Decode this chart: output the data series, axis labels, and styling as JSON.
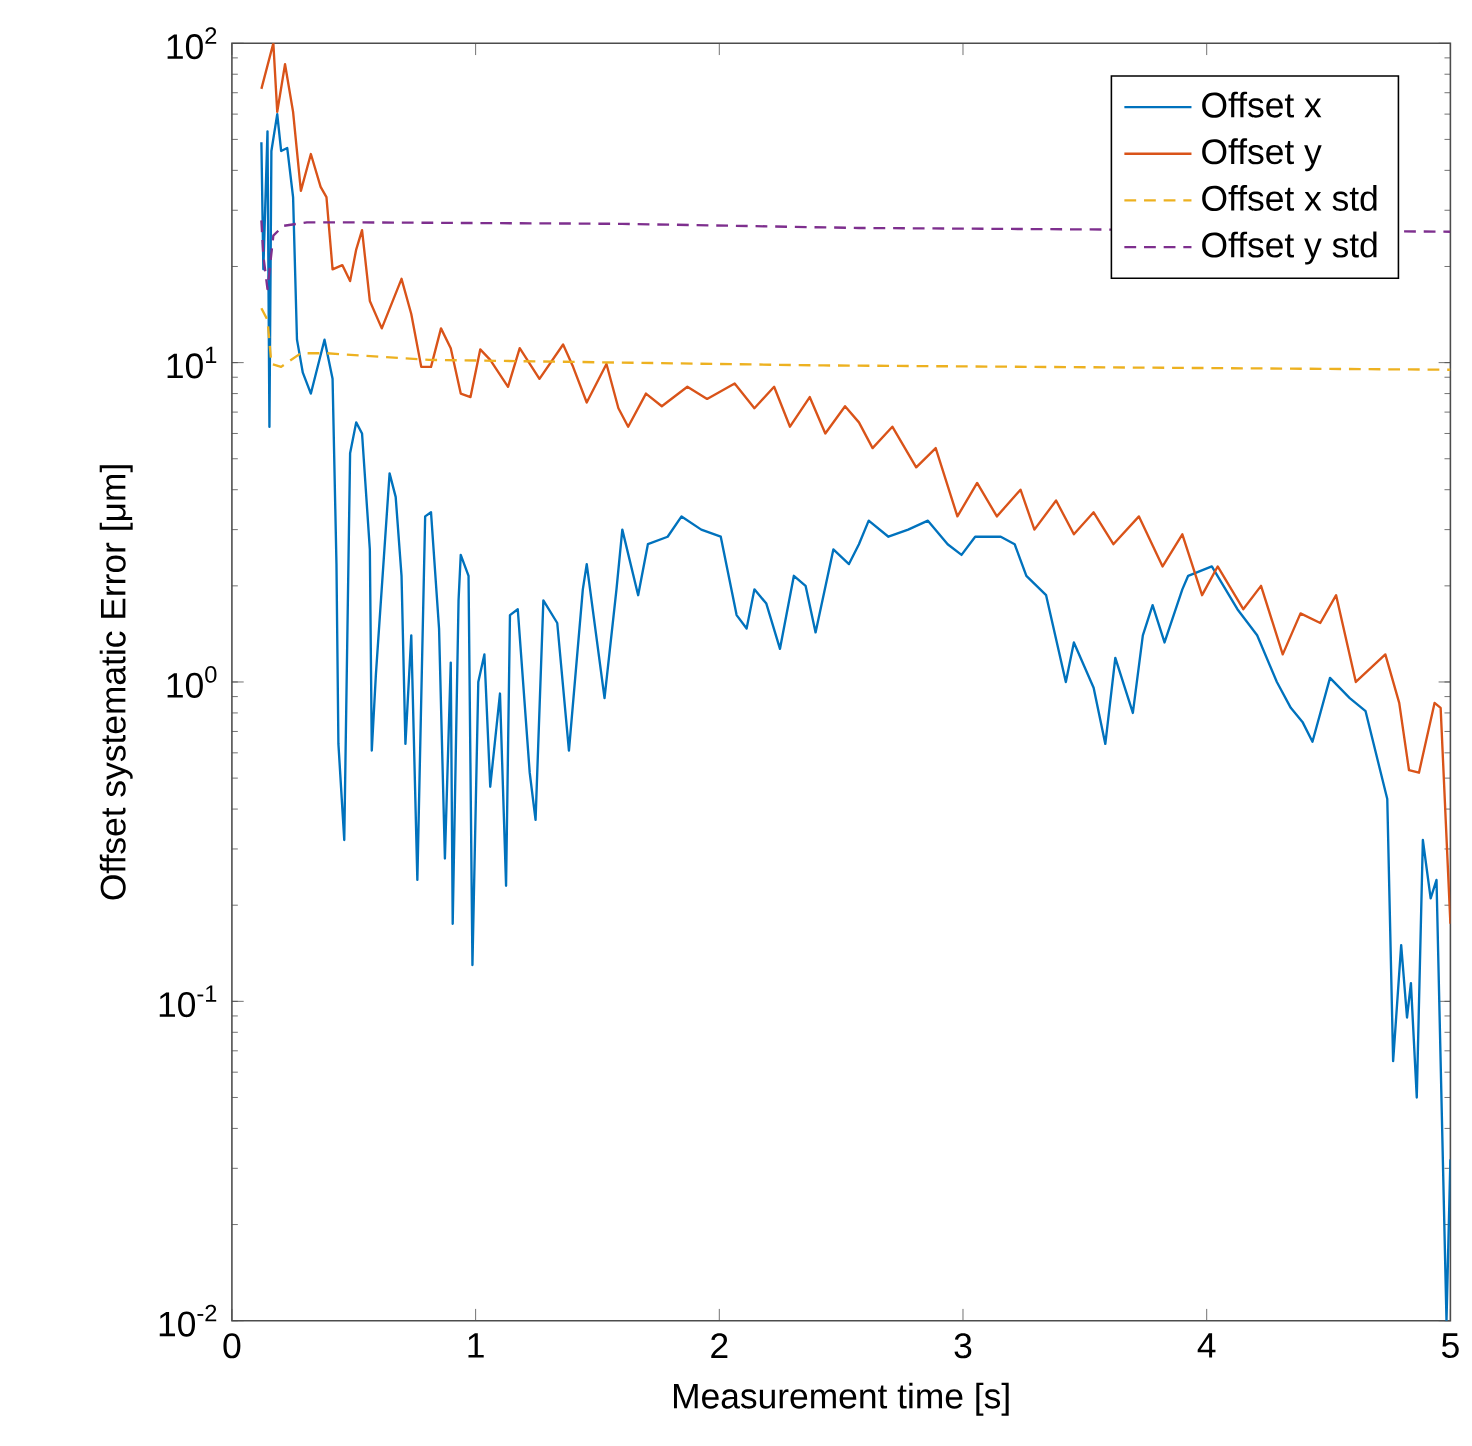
{
  "chart_data": {
    "type": "line",
    "xlabel": "Measurement time [s]",
    "ylabel": "Offset systematic Error [μm]",
    "log": "y",
    "legend": "top right",
    "marker": "none",
    "xlim": [
      0,
      5
    ],
    "xticks": [
      0,
      1,
      2,
      3,
      4,
      5
    ],
    "ylim": [
      0.01,
      100
    ],
    "yticks": [
      {
        "value": 0.01,
        "label": "10$^{-2}$"
      },
      {
        "value": 0.1,
        "label": "10$^{-1}$"
      },
      {
        "value": 1,
        "label": "10$^{0}$"
      },
      {
        "value": 10,
        "label": "10$^{1}$"
      },
      {
        "value": 100,
        "label": "10$^{2}$"
      }
    ],
    "series": [
      {
        "name": "Offset x",
        "color": "#0072bd",
        "line_style": "solid",
        "x": [
          0.121,
          0.129,
          0.146,
          0.154,
          0.162,
          0.186,
          0.202,
          0.227,
          0.251,
          0.267,
          0.291,
          0.324,
          0.38,
          0.413,
          0.429,
          0.437,
          0.461,
          0.485,
          0.51,
          0.534,
          0.566,
          0.574,
          0.591,
          0.647,
          0.672,
          0.696,
          0.712,
          0.736,
          0.761,
          0.793,
          0.817,
          0.85,
          0.874,
          0.898,
          0.906,
          0.93,
          0.939,
          0.971,
          0.987,
          1.011,
          1.036,
          1.06,
          1.1,
          1.125,
          1.141,
          1.173,
          1.222,
          1.246,
          1.278,
          1.335,
          1.383,
          1.44,
          1.456,
          1.529,
          1.578,
          1.602,
          1.667,
          1.707,
          1.788,
          1.845,
          1.926,
          2.006,
          2.071,
          2.112,
          2.144,
          2.193,
          2.249,
          2.306,
          2.354,
          2.395,
          2.468,
          2.532,
          2.573,
          2.613,
          2.694,
          2.775,
          2.856,
          2.937,
          2.994,
          3.05,
          3.155,
          3.212,
          3.26,
          3.341,
          3.422,
          3.455,
          3.536,
          3.584,
          3.625,
          3.697,
          3.738,
          3.778,
          3.827,
          3.9,
          3.924,
          4.021,
          4.126,
          4.207,
          4.288,
          4.345,
          4.393,
          4.434,
          4.506,
          4.587,
          4.652,
          4.709,
          4.741,
          4.765,
          4.798,
          4.822,
          4.838,
          4.862,
          4.887,
          4.919,
          4.943,
          4.984,
          5.0
        ],
        "values": [
          49,
          19.6,
          53,
          6.3,
          46,
          60,
          46,
          47,
          33,
          11.8,
          9.3,
          8.0,
          11.8,
          8.9,
          2.34,
          0.64,
          0.32,
          5.2,
          6.5,
          6.0,
          2.6,
          0.61,
          1.06,
          4.5,
          3.8,
          2.15,
          0.64,
          1.4,
          0.24,
          3.3,
          3.4,
          1.47,
          0.28,
          1.15,
          0.175,
          1.8,
          2.5,
          2.15,
          0.13,
          1.0,
          1.22,
          0.47,
          0.92,
          0.23,
          1.62,
          1.69,
          0.52,
          0.37,
          1.8,
          1.53,
          0.61,
          1.95,
          2.34,
          0.89,
          1.95,
          3.0,
          1.87,
          2.7,
          2.85,
          3.3,
          3.0,
          2.85,
          1.62,
          1.47,
          1.95,
          1.76,
          1.27,
          2.15,
          2.0,
          1.43,
          2.6,
          2.34,
          2.7,
          3.2,
          2.85,
          3.0,
          3.2,
          2.7,
          2.5,
          2.85,
          2.85,
          2.7,
          2.15,
          1.87,
          1.0,
          1.33,
          0.96,
          0.64,
          1.19,
          0.8,
          1.4,
          1.74,
          1.33,
          1.95,
          2.15,
          2.3,
          1.69,
          1.4,
          1.0,
          0.83,
          0.75,
          0.65,
          1.03,
          0.89,
          0.81,
          0.54,
          0.43,
          0.065,
          0.15,
          0.089,
          0.114,
          0.05,
          0.32,
          0.21,
          0.24,
          0.01,
          0.032
        ]
      },
      {
        "name": "Offset y",
        "color": "#d95319",
        "line_style": "solid",
        "x": [
          0.121,
          0.17,
          0.186,
          0.218,
          0.251,
          0.283,
          0.324,
          0.364,
          0.388,
          0.413,
          0.453,
          0.485,
          0.51,
          0.534,
          0.566,
          0.615,
          0.696,
          0.736,
          0.777,
          0.817,
          0.858,
          0.898,
          0.939,
          0.979,
          1.019,
          1.06,
          1.133,
          1.181,
          1.262,
          1.359,
          1.4,
          1.456,
          1.537,
          1.586,
          1.626,
          1.699,
          1.764,
          1.869,
          1.95,
          2.063,
          2.144,
          2.225,
          2.29,
          2.371,
          2.435,
          2.516,
          2.573,
          2.629,
          2.71,
          2.808,
          2.888,
          2.977,
          3.058,
          3.139,
          3.236,
          3.293,
          3.382,
          3.455,
          3.536,
          3.617,
          3.722,
          3.819,
          3.9,
          3.981,
          4.045,
          4.15,
          4.223,
          4.312,
          4.385,
          4.466,
          4.531,
          4.612,
          4.733,
          4.79,
          4.83,
          4.871,
          4.935,
          4.96,
          5.0
        ],
        "values": [
          72,
          100,
          61,
          86,
          61,
          34.5,
          45,
          35.5,
          33,
          19.6,
          20.2,
          18,
          22.6,
          26,
          15.6,
          12.8,
          18.3,
          14.2,
          9.7,
          9.7,
          12.8,
          11.1,
          8.0,
          7.8,
          11.0,
          10.2,
          8.4,
          11.1,
          8.9,
          11.4,
          9.7,
          7.5,
          9.9,
          7.2,
          6.3,
          8.0,
          7.3,
          8.4,
          7.7,
          8.6,
          7.2,
          8.4,
          6.3,
          7.8,
          6.0,
          7.3,
          6.5,
          5.4,
          6.3,
          4.7,
          5.4,
          3.3,
          4.2,
          3.3,
          4.0,
          3.0,
          3.7,
          2.9,
          3.4,
          2.7,
          3.3,
          2.3,
          2.9,
          1.87,
          2.3,
          1.69,
          2.0,
          1.22,
          1.64,
          1.53,
          1.87,
          1.0,
          1.22,
          0.86,
          0.53,
          0.52,
          0.86,
          0.83,
          0.175
        ]
      },
      {
        "name": "Offset x std",
        "color": "#edb120",
        "line_style": "dashed",
        "x": [
          0.121,
          0.146,
          0.162,
          0.202,
          0.283,
          0.388,
          0.809,
          2.427,
          5.0
        ],
        "values": [
          14.8,
          13.6,
          9.9,
          9.7,
          10.7,
          10.7,
          10.2,
          9.8,
          9.5
        ]
      },
      {
        "name": "Offset y std",
        "color": "#7e2f8e",
        "line_style": "dashed",
        "x": [
          0.121,
          0.129,
          0.146,
          0.17,
          0.211,
          0.308,
          0.469,
          1.602,
          2.573,
          5.0
        ],
        "values": [
          27.9,
          21.6,
          17,
          25,
          26.8,
          27.5,
          27.5,
          27.2,
          26.4,
          25.7
        ]
      }
    ]
  }
}
